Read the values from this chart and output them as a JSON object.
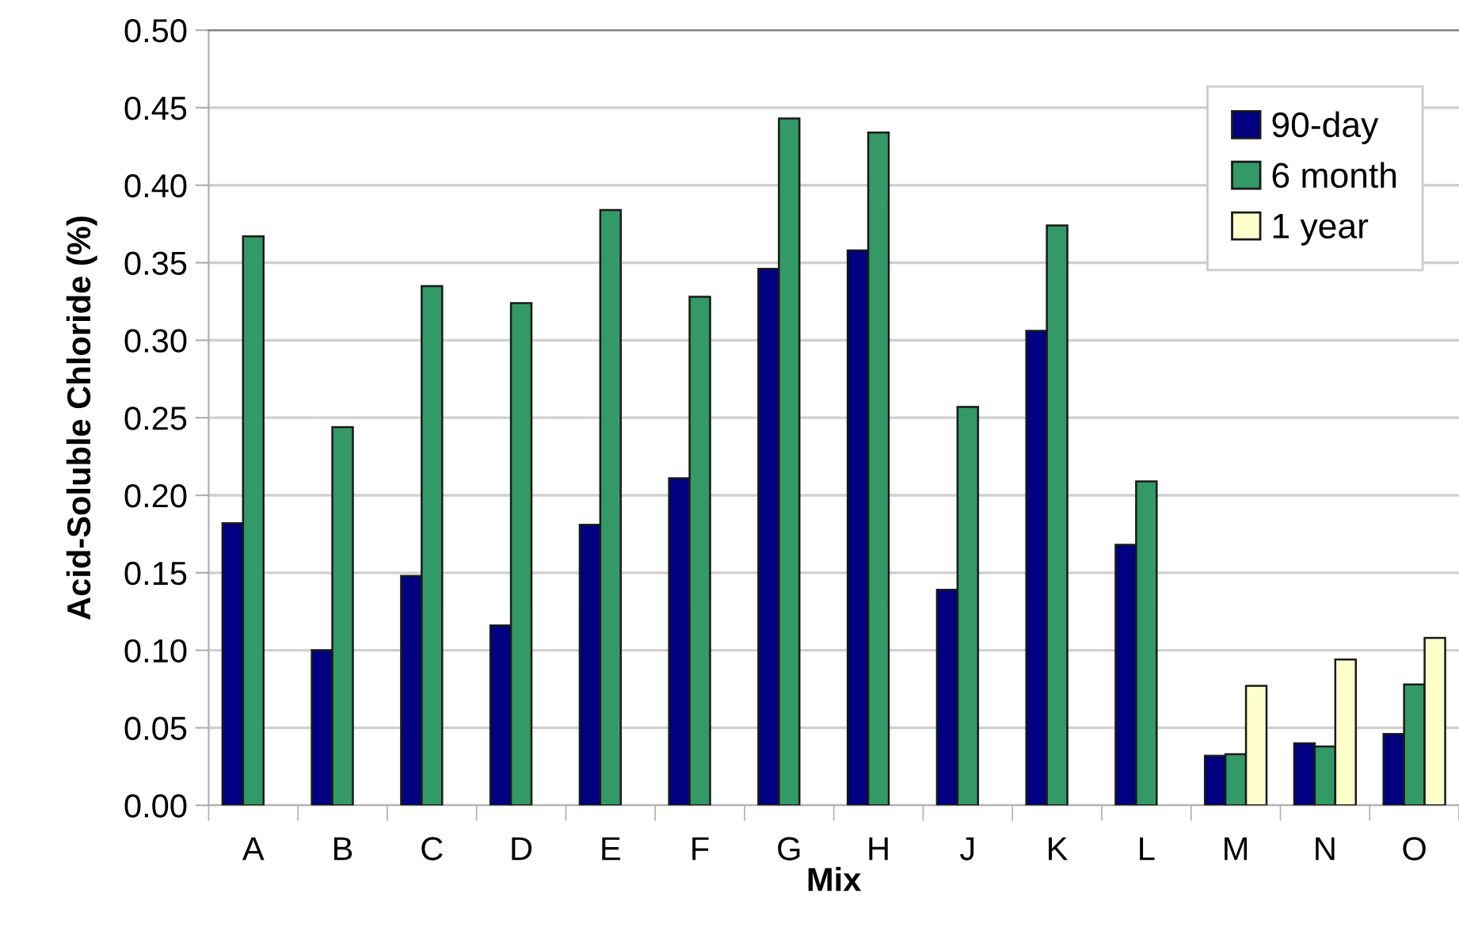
{
  "chart_data": {
    "type": "bar",
    "xlabel": "Mix",
    "ylabel": "Acid-Soluble Chloride (%)",
    "categories": [
      "A",
      "B",
      "C",
      "D",
      "E",
      "F",
      "G",
      "H",
      "J",
      "K",
      "L",
      "M",
      "N",
      "O"
    ],
    "series": [
      {
        "name": "90-day",
        "color": "#000080",
        "values": [
          0.182,
          0.1,
          0.148,
          0.116,
          0.181,
          0.211,
          0.346,
          0.358,
          0.139,
          0.306,
          0.168,
          0.032,
          0.04,
          0.046
        ]
      },
      {
        "name": "6 month",
        "color": "#339966",
        "values": [
          0.367,
          0.244,
          0.335,
          0.324,
          0.384,
          0.328,
          0.443,
          0.434,
          0.257,
          0.374,
          0.209,
          0.033,
          0.038,
          0.078
        ]
      },
      {
        "name": "1 year",
        "color": "#ffffcc",
        "values": [
          null,
          null,
          null,
          null,
          null,
          null,
          null,
          null,
          null,
          null,
          null,
          0.077,
          0.094,
          0.108
        ]
      }
    ],
    "ylim": [
      0,
      0.5
    ],
    "yticks": [
      {
        "value": 0,
        "label": "0.00"
      },
      {
        "value": 0.05,
        "label": "0.05"
      },
      {
        "value": 0.1,
        "label": "0.10"
      },
      {
        "value": 0.15,
        "label": "0.15"
      },
      {
        "value": 0.2,
        "label": "0.20"
      },
      {
        "value": 0.25,
        "label": "0.25"
      },
      {
        "value": 0.3,
        "label": "0.30"
      },
      {
        "value": 0.35,
        "label": "0.35"
      },
      {
        "value": 0.4,
        "label": "0.40"
      },
      {
        "value": 0.45,
        "label": "0.45"
      },
      {
        "value": 0.5,
        "label": "0.50"
      }
    ],
    "grid": "y",
    "legend": "top right"
  }
}
